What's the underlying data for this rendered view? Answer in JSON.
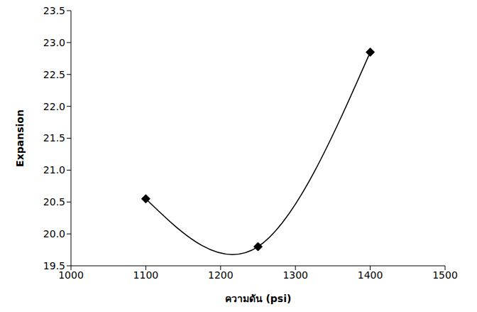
{
  "chart_data": {
    "type": "line",
    "x_label": "ความดัน (psi)",
    "y_label": "Expansion",
    "x": [
      1100,
      1250,
      1400
    ],
    "values": [
      20.55,
      19.8,
      22.85
    ],
    "color": "#000000",
    "marker": "diamond",
    "line_style": "smooth",
    "xlim": [
      1000,
      1500
    ],
    "xticks": [
      1000,
      1100,
      1200,
      1300,
      1400,
      1500
    ],
    "ylim": [
      19.5,
      23.5
    ],
    "yticks": [
      19.5,
      {
        "value": 20,
        "label": "20.0"
      },
      20.5,
      {
        "value": 21,
        "label": "21.0"
      },
      21.5,
      {
        "value": 22,
        "label": "22.0"
      },
      22.5,
      {
        "value": 23,
        "label": "23.0"
      },
      23.5
    ],
    "grid": false
  }
}
